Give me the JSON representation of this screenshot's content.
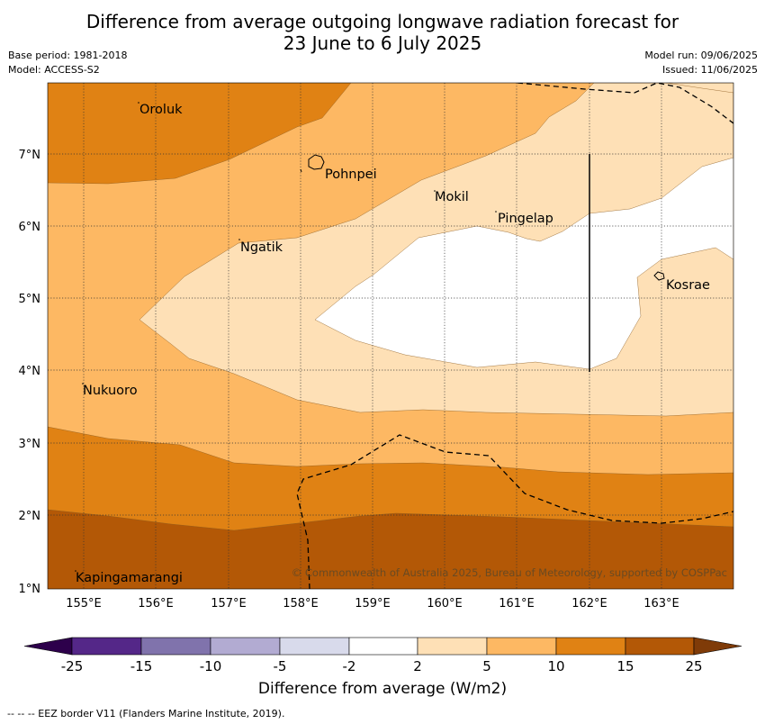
{
  "title": {
    "line1": "Difference from average outgoing longwave radiation forecast for",
    "line2": "23 June to 6 July 2025"
  },
  "meta": {
    "base_period": "Base period: 1981-2018",
    "model": "Model: ACCESS-S2",
    "model_run": "Model run: 09/06/2025",
    "issued": "Issued: 11/06/2025"
  },
  "map": {
    "lat_labels": [
      "7°N",
      "6°N",
      "5°N",
      "4°N",
      "3°N",
      "2°N",
      "1°N"
    ],
    "lon_labels": [
      "155°E",
      "156°E",
      "157°E",
      "158°E",
      "159°E",
      "160°E",
      "161°E",
      "162°E",
      "163°E"
    ],
    "places": {
      "oroluk": "Oroluk",
      "pohnpei": "Pohnpei",
      "mokil": "Mokil",
      "pingelap": "Pingelap",
      "ngatik": "Ngatik",
      "kosrae": "Kosrae",
      "nukuoro": "Nukuoro",
      "kapingamarangi": "Kapingamarangi"
    },
    "copyright": "© Commonwealth of Australia 2025, Bureau of Meteorology, supported by COSPPac",
    "fill_colors": {
      "c15_25": "#b35806",
      "c10_15": "#e08214",
      "c5_10": "#fdb863",
      "c2_5": "#fee0b6",
      "cneg2_2": "#ffffff"
    }
  },
  "colorbar": {
    "ticks": [
      "-25",
      "-15",
      "-10",
      "-5",
      "-2",
      "2",
      "5",
      "10",
      "15",
      "25"
    ],
    "colors": [
      "#2d004b",
      "#542788",
      "#8073ac",
      "#b2abd2",
      "#d8daeb",
      "#ffffff",
      "#fee0b6",
      "#fdb863",
      "#e08214",
      "#b35806",
      "#7f3b08"
    ],
    "label": "Difference from average (W/m2)"
  },
  "footnote": "--  --  -- EEZ border V11 (Flanders Marine Institute, 2019)."
}
